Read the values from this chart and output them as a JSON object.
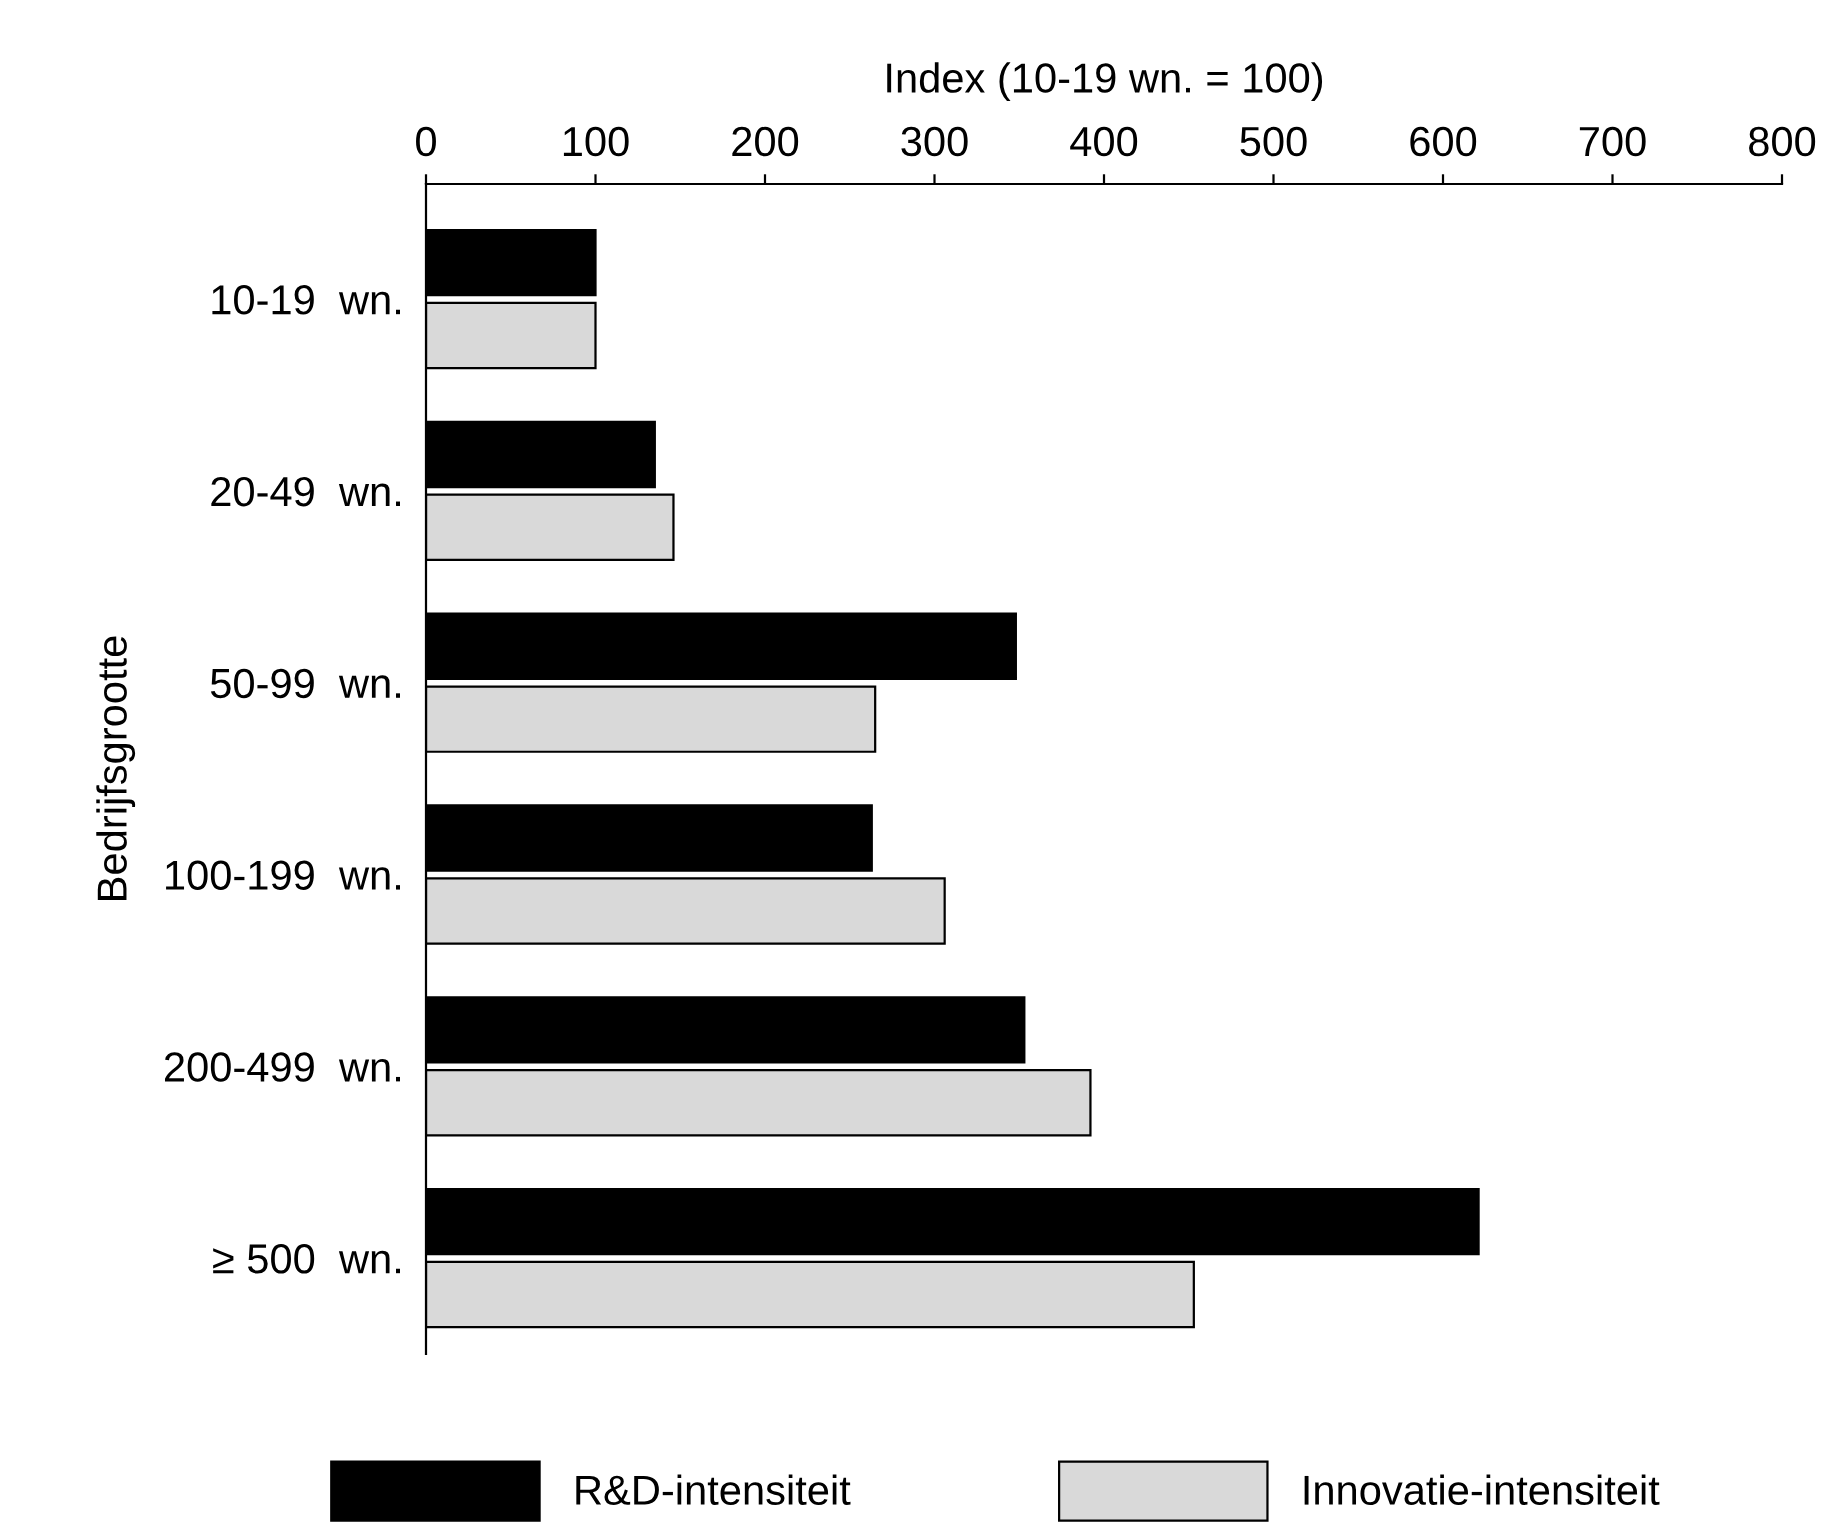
{
  "chart_data": {
    "type": "bar",
    "orientation": "horizontal",
    "xlabel": "Index (10-19 wn. = 100)",
    "ylabel": "Bedrijfsgrootte",
    "categories": [
      "10-19  wn.",
      "20-49  wn.",
      "50-99  wn.",
      "100-199  wn.",
      "200-499  wn.",
      "≥ 500  wn."
    ],
    "series": [
      {
        "name": "R&D-intensiteit",
        "color": "#000000",
        "values": [
          100,
          135,
          348,
          263,
          353,
          621
        ]
      },
      {
        "name": "Innovatie-intensiteit",
        "color": "#d9d9d9",
        "values": [
          100,
          146,
          265,
          306,
          392,
          453
        ]
      }
    ],
    "xlim": [
      0,
      800
    ],
    "xticks": [
      0,
      100,
      200,
      300,
      400,
      500,
      600,
      700,
      800
    ],
    "grid": false,
    "legend": "bottom"
  }
}
